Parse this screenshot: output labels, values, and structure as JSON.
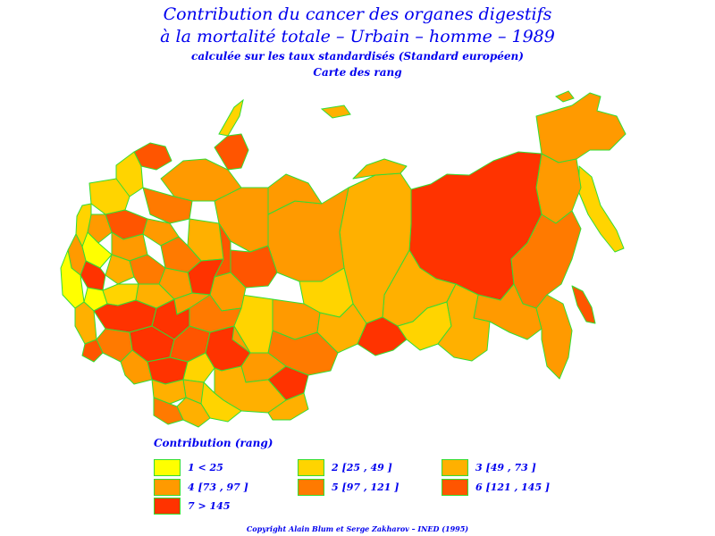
{
  "header": {
    "title_line1": "Contribution du cancer des organes digestifs",
    "title_line2": "à la mortalité totale – Urbain – homme – 1989",
    "subtitle": "calculée sur les taux standardisés (Standard européen)",
    "map_type": "Carte des rang"
  },
  "colors": {
    "border": "#33dd33",
    "text": "#0000ee",
    "background": "#ffffff"
  },
  "legend": {
    "title": "Contribution (rang)",
    "classes": [
      {
        "label": "1 < 25",
        "color": "#ffff00"
      },
      {
        "label": "2 [25 , 49 ]",
        "color": "#ffd400"
      },
      {
        "label": "3 [49 , 73 ]",
        "color": "#ffb000"
      },
      {
        "label": "4 [73 , 97 ]",
        "color": "#ff9a00"
      },
      {
        "label": "5 [97 , 121 ]",
        "color": "#ff7a00"
      },
      {
        "label": "6 [121 , 145 ]",
        "color": "#ff5500"
      },
      {
        "label": "7 > 145",
        "color": "#ff3300"
      }
    ]
  },
  "footer": {
    "copyright": "Copyright Alain Blum et Serge Zakharov – INED (1995)"
  }
}
